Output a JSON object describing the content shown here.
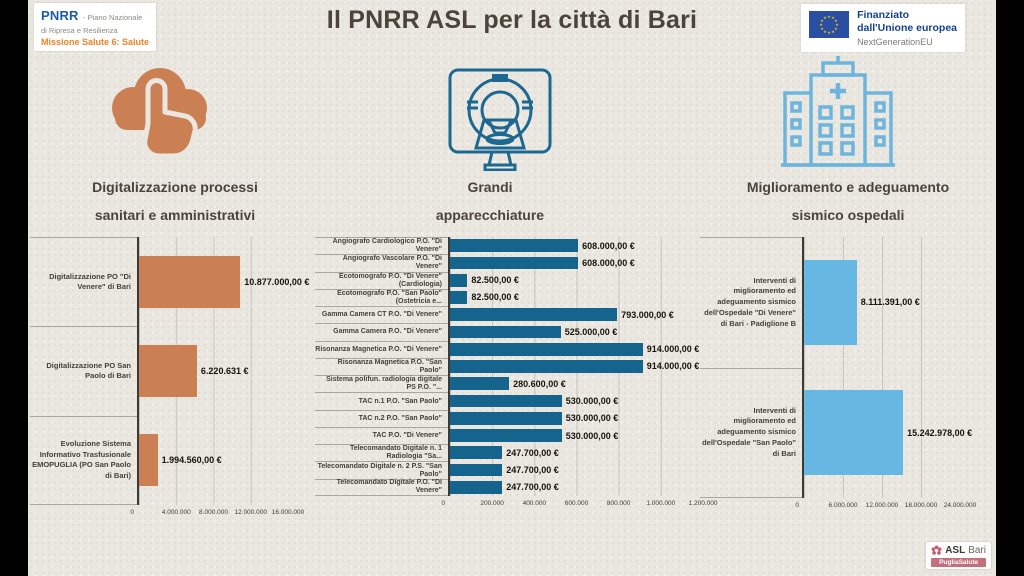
{
  "header": {
    "pnrr_logo": {
      "name": "PNRR",
      "subtitle1": "- Piano Nazionale",
      "subtitle2": "di Ripresa e Resilienza",
      "mission": "Missione Salute 6: Salute"
    },
    "title": "Il PNRR ASL per la città di Bari",
    "eu_funding": {
      "line1": "Finanziato",
      "line2": "dall'Unione europea",
      "line3": "NextGenerationEU"
    }
  },
  "sections": [
    {
      "icon": "cloud-touch-icon",
      "caption_line1": "Digitalizzazione processi",
      "caption_line2": "sanitari e amministrativi"
    },
    {
      "icon": "mri-scanner-icon",
      "caption_line1": "Grandi",
      "caption_line2": "apparecchiature"
    },
    {
      "icon": "hospital-building-icon",
      "caption_line1": "Miglioramento e adeguamento",
      "caption_line2": "sismico ospedali"
    }
  ],
  "footer": {
    "logo_name": "ASL",
    "logo_city": "Bari",
    "banner": "PugliaSalute"
  },
  "colors": {
    "background": "#eae7e0",
    "orange": "#cb8054",
    "dark_blue": "#15648e",
    "light_blue": "#66b8e3",
    "eu_blue": "#2a4fa2",
    "title_text": "#4a443b"
  },
  "chart_data": [
    {
      "type": "bar",
      "orientation": "horizontal",
      "title": "Digitalizzazione processi sanitari e amministrativi",
      "unit": "EUR",
      "color": "#cb8054",
      "categories": [
        "Digitalizzazione PO \"Di Venere\" di Bari",
        "Digitalizzazione PO San Paolo di Bari",
        "Evoluzione Sistema Informativo Trasfusionale EMOPUGLIA (PO San Paolo di Bari)"
      ],
      "values": [
        10877000,
        6220631,
        1994560
      ],
      "value_labels": [
        "10.877.000,00 €",
        "6.220.631 €",
        "1.994.560,00 €"
      ],
      "axis": {
        "max": 16000000,
        "tick_values": [
          0,
          4000000,
          8000000,
          12000000,
          16000000
        ],
        "ticks": [
          "0",
          "4.000.000",
          "8.000.000",
          "12.000.000",
          "16.000.000"
        ]
      }
    },
    {
      "type": "bar",
      "orientation": "horizontal",
      "title": "Grandi apparecchiature",
      "unit": "EUR",
      "color": "#15648e",
      "categories": [
        "Angiografo Cardiologico P.O. \"Di Venere\"",
        "Angiografo Vascolare P.O. \"Di Venere\"",
        "Ecotomografo P.O. \"Di Venere\" (Cardiologia)",
        "Ecotomografo P.O. \"San Paolo\" (Ostetricia e...",
        "Gamma Camera CT P.O. \"Di Venere\"",
        "Gamma Camera P.O. \"Di Venere\"",
        "Risonanza Magnetica P.O. \"Di Venere\"",
        "Risonanza Magnetica P.O. \"San Paolo\"",
        "Sistema polifun. radiologia digitale PS P.O. \"...",
        "TAC n.1 P.O. \"San Paolo\"",
        "TAC n.2 P.O. \"San Paolo\"",
        "TAC P.O. \"Di Venere\"",
        "Telecomandato Digitale n. 1 Radiologia \"Sa...",
        "Telecomandato Digitale n. 2 P.S. \"San Paolo\"",
        "Telecomandato Digitale P.O. \"Di Venere\""
      ],
      "values": [
        608000,
        608000,
        82500,
        82500,
        793000,
        525000,
        914000,
        914000,
        280600,
        530000,
        530000,
        530000,
        247700,
        247700,
        247700
      ],
      "value_labels": [
        "608.000,00 €",
        "608.000,00 €",
        "82.500,00 €",
        "82.500,00 €",
        "793.000,00 €",
        "525.000,00 €",
        "914.000,00 €",
        "914.000,00 €",
        "280.600,00 €",
        "530.000,00 €",
        "530.000,00 €",
        "530.000,00 €",
        "247.700,00 €",
        "247.700,00 €",
        "247.700,00 €"
      ],
      "axis": {
        "max": 1200000,
        "tick_values": [
          0,
          200000,
          400000,
          600000,
          800000,
          1000000,
          1200000
        ],
        "ticks": [
          "0",
          "200.000",
          "400.000",
          "600.000",
          "800.000",
          "1.000.000",
          "1.200.000"
        ]
      }
    },
    {
      "type": "bar",
      "orientation": "horizontal",
      "title": "Miglioramento e adeguamento sismico ospedali",
      "unit": "EUR",
      "color": "#66b8e3",
      "categories": [
        "Interventi di miglioramento ed adeguamento sismico dell'Ospedale \"Di Venere\" di Bari - Padiglione B",
        "Interventi di miglioramento ed adeguamento sismico dell'Ospedale \"San Paolo\" di Bari"
      ],
      "values": [
        8111391,
        15242978
      ],
      "value_labels": [
        "8.111.391,00 €",
        "15.242.978,00 €"
      ],
      "axis": {
        "max": 24000000,
        "tick_values": [
          0,
          6000000,
          12000000,
          18000000,
          24000000
        ],
        "ticks": [
          "0",
          "6.000.000",
          "12.000.000",
          "18.000.000",
          "24.000.000"
        ]
      }
    }
  ]
}
